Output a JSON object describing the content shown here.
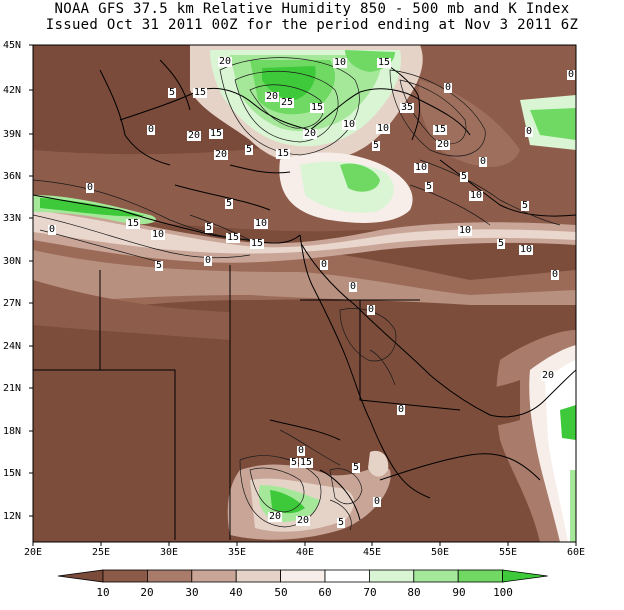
{
  "header": {
    "line1": "NOAA GFS 37.5 km Relative Humidity 850 - 500 mb and K Index",
    "line2": "Issued Oct 31 2011 00Z for the period ending at Nov 3 2011 6Z"
  },
  "axes": {
    "lat_labels": [
      "45N",
      "42N",
      "39N",
      "36N",
      "33N",
      "30N",
      "27N",
      "24N",
      "21N",
      "18N",
      "15N",
      "12N"
    ],
    "lon_labels": [
      "20E",
      "25E",
      "30E",
      "35E",
      "40E",
      "45E",
      "50E",
      "55E",
      "60E"
    ]
  },
  "colorbar": {
    "values": [
      "10",
      "20",
      "30",
      "40",
      "50",
      "60",
      "70",
      "80",
      "90",
      "100"
    ],
    "colors": [
      "#7a4a3a",
      "#8c5a48",
      "#a97b6b",
      "#c8a597",
      "#e6d3c8",
      "#f7eeea",
      "#ffffff",
      "#d9f5d4",
      "#a6e89a",
      "#6fd964",
      "#3dc93a"
    ]
  },
  "k_index_labels": [
    {
      "t": "20"
    },
    {
      "t": "10"
    },
    {
      "t": "15"
    },
    {
      "t": "0"
    },
    {
      "t": "5"
    },
    {
      "t": "15"
    },
    {
      "t": "20"
    },
    {
      "t": "25"
    },
    {
      "t": "15"
    },
    {
      "t": "35"
    },
    {
      "t": "0"
    },
    {
      "t": "0"
    },
    {
      "t": "20"
    },
    {
      "t": "15"
    },
    {
      "t": "20"
    },
    {
      "t": "10"
    },
    {
      "t": "5"
    },
    {
      "t": "15"
    },
    {
      "t": "20"
    },
    {
      "t": "10"
    },
    {
      "t": "5"
    },
    {
      "t": "15"
    },
    {
      "t": "20"
    },
    {
      "t": "0"
    },
    {
      "t": "0"
    },
    {
      "t": "5"
    },
    {
      "t": "10"
    },
    {
      "t": "5"
    },
    {
      "t": "0"
    },
    {
      "t": "5"
    },
    {
      "t": "10"
    },
    {
      "t": "0"
    },
    {
      "t": "15"
    },
    {
      "t": "10"
    },
    {
      "t": "5"
    },
    {
      "t": "10"
    },
    {
      "t": "15"
    },
    {
      "t": "15"
    },
    {
      "t": "10"
    },
    {
      "t": "5"
    },
    {
      "t": "0"
    },
    {
      "t": "5"
    },
    {
      "t": "0"
    },
    {
      "t": "0"
    },
    {
      "t": "0"
    },
    {
      "t": "0"
    },
    {
      "t": "10"
    },
    {
      "t": "5"
    },
    {
      "t": "0"
    },
    {
      "t": "20"
    },
    {
      "t": "0"
    },
    {
      "t": "5"
    },
    {
      "t": "15"
    },
    {
      "t": "5"
    },
    {
      "t": "0"
    },
    {
      "t": "20"
    },
    {
      "t": "20"
    },
    {
      "t": "5"
    }
  ]
}
